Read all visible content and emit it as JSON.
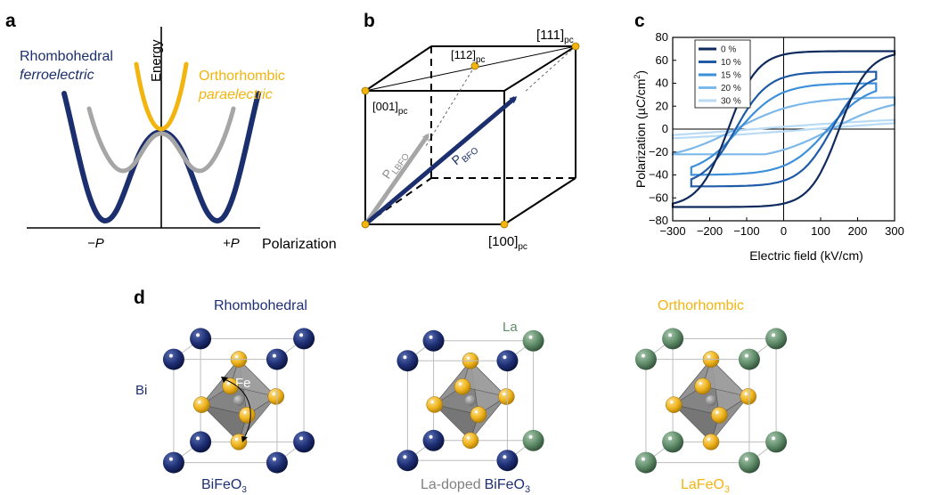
{
  "panels": {
    "a": {
      "label": "a",
      "rhombohedral": "Rhombohedral",
      "ferroelectric": "ferroelectric",
      "orthorhombic": "Orthorhombic",
      "paraelectric": "paraelectric",
      "energy_axis": "Energy",
      "minus_p": "−P",
      "plus_p": "+P",
      "polarization_axis": "Polarization",
      "colors": {
        "navy": "#1b2f6e",
        "gray": "#a6a6a6",
        "gold": "#f2b40f"
      }
    },
    "b": {
      "label": "b",
      "v111": "[111]",
      "v112": "[112]",
      "v001": "[001]",
      "v100": "[100]",
      "pc": "pc",
      "p_lbfo": "P",
      "p_lbfo_sub": "LBFO",
      "p_bfo": "P",
      "p_bfo_sub": "BFO"
    },
    "d": {
      "label": "d",
      "rhombohedral": "Rhombohedral",
      "bi": "Bi",
      "fe": "Fe",
      "bifeo3": "BiFeO",
      "la": "La",
      "la_doped": "La-doped",
      "bifeo3_doped": "BiFeO",
      "orthorhombic": "Orthorhombic",
      "lafeo3": "LaFeO",
      "sub3": "3",
      "colors": {
        "bi": "#1f2f75",
        "la": "#5f8c69",
        "o": "#f0b51e",
        "fe": "#808080"
      }
    }
  },
  "chart_data": {
    "panel_label": "c",
    "type": "line",
    "xlabel": "Electric field (kV/cm)",
    "ylabel": "Polarization (µC/cm²)",
    "ylabel_parts": {
      "main": "Polarization (µC/cm",
      "sup": "2",
      "end": ")"
    },
    "xlim": [
      -300,
      300
    ],
    "ylim": [
      -80,
      80
    ],
    "xticks": [
      -300,
      -200,
      -100,
      0,
      100,
      200,
      300
    ],
    "yticks": [
      -80,
      -60,
      -40,
      -20,
      0,
      20,
      40,
      60,
      80
    ],
    "legend_position": "top-left",
    "series": [
      {
        "name": "0 %",
        "color": "#0f2a5c",
        "saturation": 68,
        "remanent": 65,
        "coercive": 150,
        "pmin": -68,
        "fmax": 300
      },
      {
        "name": "10 %",
        "color": "#1f5ba6",
        "saturation": 50,
        "remanent": 45,
        "coercive": 130,
        "pmin": -50,
        "fmax": 250
      },
      {
        "name": "15 %",
        "color": "#3d8fd9",
        "saturation": 40,
        "remanent": 32,
        "coercive": 120,
        "pmin": -40,
        "fmax": 250
      },
      {
        "name": "20 %",
        "color": "#7db8ea",
        "saturation": 28,
        "remanent": 18,
        "coercive": 130,
        "pmin": -22,
        "fmax": 300
      },
      {
        "name": "30 %",
        "color": "#b9dbf5",
        "saturation": 12,
        "remanent": 2,
        "coercive": 80,
        "pmin": -8,
        "fmax": 300
      }
    ]
  }
}
